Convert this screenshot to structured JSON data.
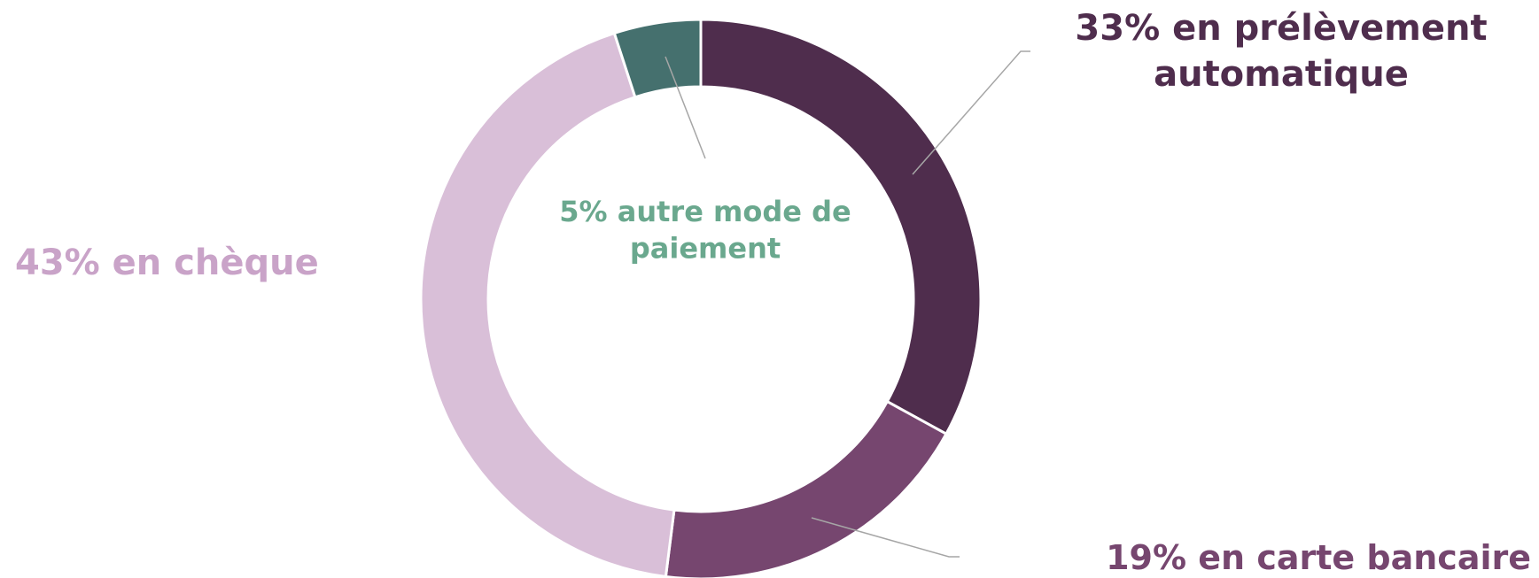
{
  "chart_data": {
    "type": "donut",
    "values": [
      33,
      19,
      43,
      5
    ],
    "value_labels": [
      [
        "33% en prélèvement",
        "automatique"
      ],
      [
        "19% en carte bancaire"
      ],
      [
        "43% en chèque"
      ],
      [
        "5% autre mode de",
        "paiement"
      ]
    ],
    "colors": [
      "#4f2d4d",
      "#76466f",
      "#d9bfd8",
      "#45706e"
    ],
    "label_colors": [
      "#4f2d4d",
      "#76466f",
      "#c9a3c8",
      "#6aa88e"
    ]
  }
}
